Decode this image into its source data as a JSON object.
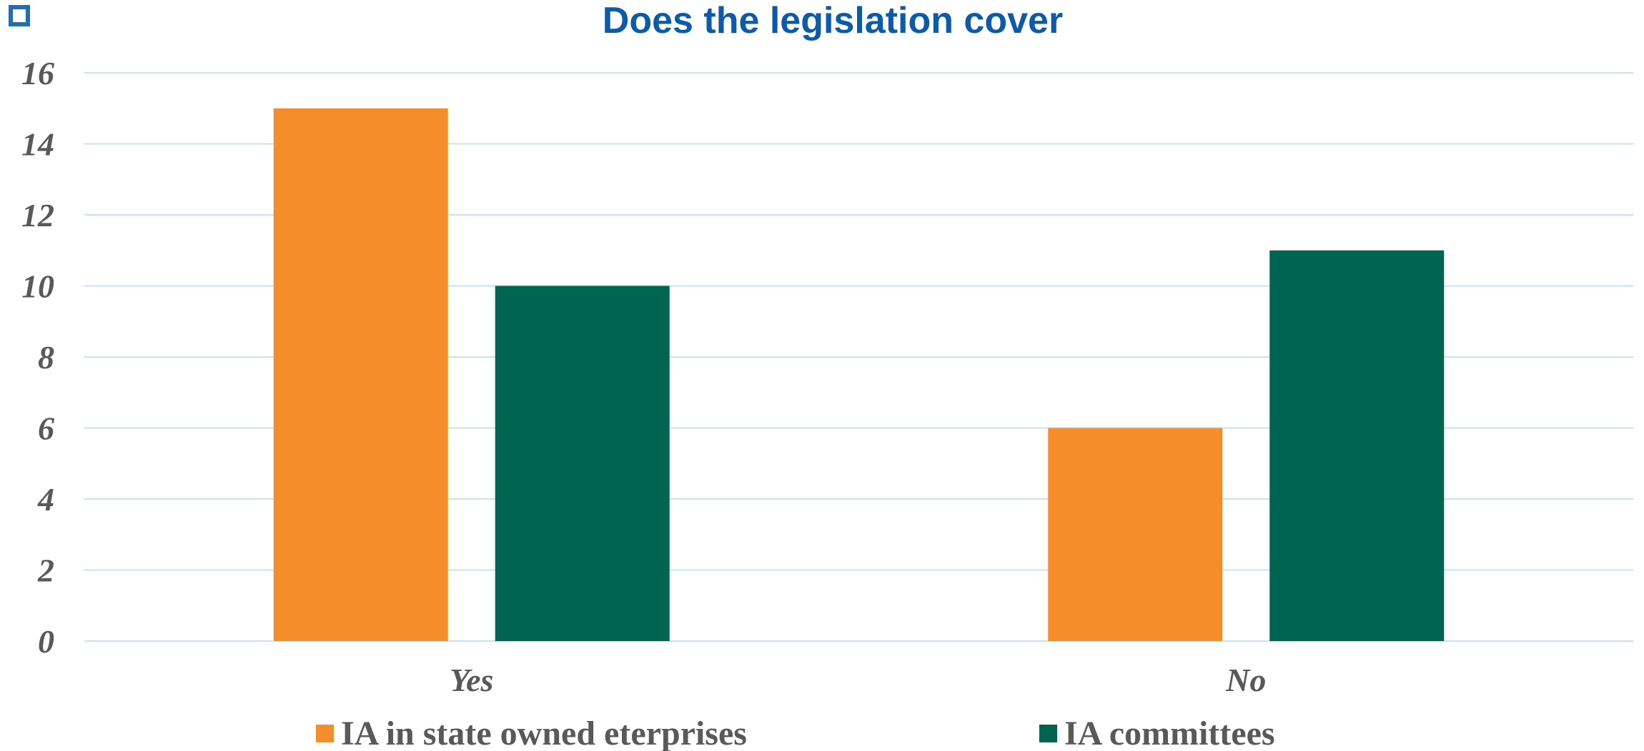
{
  "chart_data": {
    "type": "bar",
    "title": "Does the legislation cover",
    "categories": [
      "Yes",
      "No"
    ],
    "series": [
      {
        "name": "IA in state owned eterprises",
        "values": [
          15,
          6
        ],
        "color": "#F68D2B"
      },
      {
        "name": "IA committees",
        "values": [
          10,
          11
        ],
        "color": "#006550"
      }
    ],
    "ylim": [
      0,
      16
    ],
    "yticks": [
      0,
      2,
      4,
      6,
      8,
      10,
      12,
      14,
      16
    ],
    "grid": true,
    "legend": "bottom",
    "colors": {
      "title": "#0B5BAA",
      "tick": "#595959",
      "grid": "#C5E3F0",
      "marker": "#1F6FB2"
    }
  }
}
